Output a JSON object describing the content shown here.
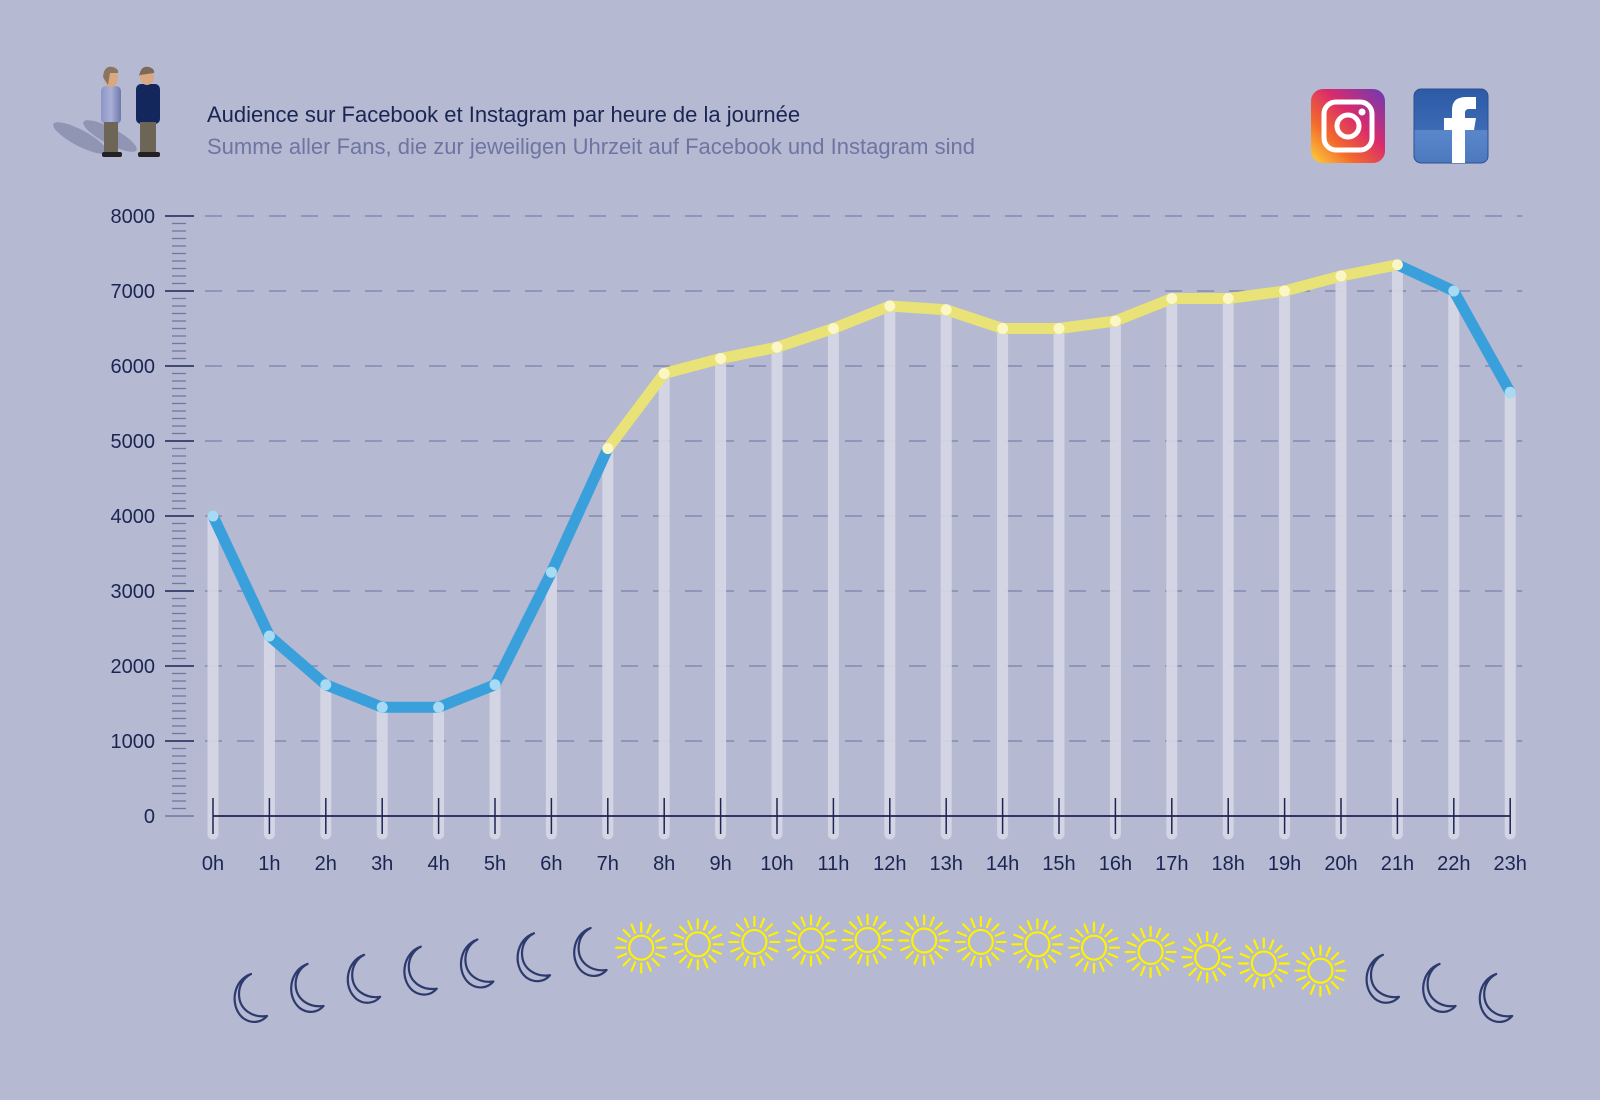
{
  "header": {
    "title": "Audience sur Facebook et Instagram par heure de la journée",
    "subtitle": "Summe aller Fans, die zur jeweiligen Uhrzeit auf Facebook und Instagram sind",
    "icons": [
      "people-icon",
      "instagram-icon",
      "facebook-icon"
    ]
  },
  "colors": {
    "background": "#b5b9d1",
    "night_line": "#3aa0dc",
    "day_line": "#e8e277",
    "bar": "#d8d9e7",
    "axis": "#1b2553",
    "sun": "#fff200",
    "moon": "#2d3a6e"
  },
  "chart_data": {
    "type": "line",
    "title": "Audience sur Facebook et Instagram par heure de la journée",
    "subtitle": "Summe aller Fans, die zur jeweiligen Uhrzeit auf Facebook und Instagram sind",
    "xlabel": "",
    "ylabel": "",
    "ylim": [
      0,
      8000
    ],
    "yticks": [
      "0",
      "1000",
      "2000",
      "3000",
      "4000",
      "5000",
      "6000",
      "7000",
      "8000"
    ],
    "categories": [
      "0h",
      "1h",
      "2h",
      "3h",
      "4h",
      "5h",
      "6h",
      "7h",
      "8h",
      "9h",
      "10h",
      "11h",
      "12h",
      "13h",
      "14h",
      "15h",
      "16h",
      "17h",
      "18h",
      "19h",
      "20h",
      "21h",
      "22h",
      "23h"
    ],
    "values": [
      4000,
      2400,
      1750,
      1450,
      1450,
      1750,
      3250,
      4900,
      5900,
      6100,
      6250,
      6500,
      6800,
      6750,
      6500,
      6500,
      6600,
      6900,
      6900,
      7000,
      7200,
      7350,
      7000,
      5650
    ],
    "day_range": [
      "7h",
      "21h"
    ],
    "grid": true,
    "day_night_icons": [
      "moon",
      "moon",
      "moon",
      "moon",
      "moon",
      "moon",
      "moon",
      "sun",
      "sun",
      "sun",
      "sun",
      "sun",
      "sun",
      "sun",
      "sun",
      "sun",
      "sun",
      "sun",
      "sun",
      "sun",
      "moon",
      "moon",
      "moon"
    ]
  }
}
